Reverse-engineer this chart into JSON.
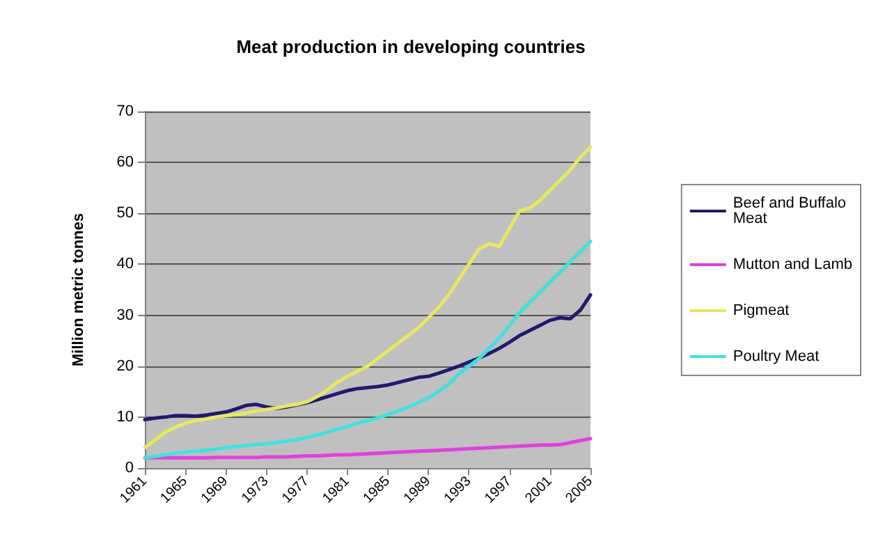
{
  "chart_data": {
    "type": "line",
    "title": "Meat production in developing countries",
    "ylabel": "Million metric tonnes",
    "categories": [
      "1961",
      null,
      null,
      null,
      "1965",
      null,
      null,
      null,
      "1969",
      null,
      null,
      null,
      "1973",
      null,
      null,
      null,
      "1977",
      null,
      null,
      null,
      "1981",
      null,
      null,
      null,
      "1985",
      null,
      null,
      null,
      "1989",
      null,
      null,
      null,
      "1993",
      null,
      null,
      null,
      "1997",
      null,
      null,
      null,
      "2001",
      null,
      null,
      null,
      "2005"
    ],
    "series": [
      {
        "name": "Beef and Buffalo Meat",
        "color": "#1f1a6e",
        "values": [
          9.5,
          9.8,
          10,
          10.3,
          10.3,
          10.2,
          10.4,
          10.7,
          11,
          11.6,
          12.3,
          12.5,
          12,
          11.7,
          12,
          12.4,
          12.8,
          13.4,
          14,
          14.6,
          15.2,
          15.6,
          15.8,
          16,
          16.3,
          16.8,
          17.3,
          17.8,
          18,
          18.6,
          19.3,
          20,
          20.8,
          21.6,
          22.5,
          23.5,
          24.7,
          26,
          27,
          28,
          29,
          29.5,
          29.3,
          31,
          34
        ]
      },
      {
        "name": "Mutton and Lamb",
        "color": "#e040e0",
        "values": [
          2,
          2,
          2,
          2,
          2,
          2,
          2,
          2.1,
          2.1,
          2.1,
          2.1,
          2.1,
          2.2,
          2.2,
          2.2,
          2.3,
          2.4,
          2.4,
          2.5,
          2.6,
          2.6,
          2.7,
          2.8,
          2.9,
          3,
          3.1,
          3.2,
          3.3,
          3.4,
          3.5,
          3.6,
          3.7,
          3.8,
          3.9,
          4,
          4.1,
          4.2,
          4.3,
          4.4,
          4.5,
          4.5,
          4.6,
          5,
          5.4,
          5.8
        ]
      },
      {
        "name": "Pigmeat",
        "color": "#e8e860",
        "values": [
          4,
          5.5,
          7,
          8,
          8.8,
          9.3,
          9.6,
          10,
          10.3,
          10.5,
          10.8,
          11.2,
          11.5,
          11.8,
          12.2,
          12.5,
          13,
          14,
          15.3,
          16.8,
          18,
          19,
          20,
          21.5,
          23,
          24.5,
          26,
          27.5,
          29.5,
          31.5,
          34,
          37,
          40,
          43,
          44,
          43.5,
          47,
          50.5,
          51,
          52.5,
          54.5,
          56.5,
          58.5,
          61,
          63
        ]
      },
      {
        "name": "Poultry Meat",
        "color": "#40e0e0",
        "values": [
          2,
          2.3,
          2.6,
          2.9,
          3.1,
          3.3,
          3.5,
          3.7,
          4,
          4.2,
          4.4,
          4.6,
          4.8,
          5,
          5.3,
          5.6,
          6,
          6.5,
          7,
          7.6,
          8.2,
          8.8,
          9.3,
          9.8,
          10.5,
          11.2,
          12,
          12.8,
          13.8,
          15,
          16.5,
          18.5,
          20,
          21.5,
          23.5,
          25.5,
          28,
          30.5,
          32.5,
          34.5,
          36.5,
          38.5,
          40.5,
          42.5,
          44.5
        ]
      }
    ],
    "ylim": [
      0,
      70
    ],
    "yticks": [
      0,
      10,
      20,
      30,
      40,
      50,
      60,
      70
    ],
    "grid": "y",
    "legend": "right",
    "marker": "none",
    "line_style": "solid"
  }
}
